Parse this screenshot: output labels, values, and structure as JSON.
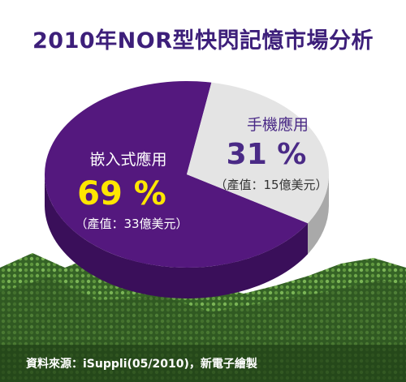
{
  "title": "2010年NOR型快閃記憶市場分析",
  "source": "資料來源：iSuppli(05/2010)，新電子繪製",
  "colors": {
    "title": "#3d1f7a",
    "embedded": "#54187e",
    "embedded_side": "#3a0f5a",
    "mobile": "#e4e4e4",
    "mobile_side": "#a9a9a9",
    "pct_embedded": "#ffe600",
    "pct_mobile": "#4a2a86",
    "board": "#3d6b2a"
  },
  "chart_data": {
    "type": "pie",
    "title": "2010年NOR型快閃記憶市場分析",
    "slices": [
      {
        "label": "嵌入式應用",
        "value": 69,
        "display": "69 %",
        "note": "（產值：33億美元）"
      },
      {
        "label": "手機應用",
        "value": 31,
        "display": "31 %",
        "note": "（產值：15億美元）"
      }
    ],
    "source": "資料來源：iSuppli(05/2010)，新電子繪製"
  }
}
